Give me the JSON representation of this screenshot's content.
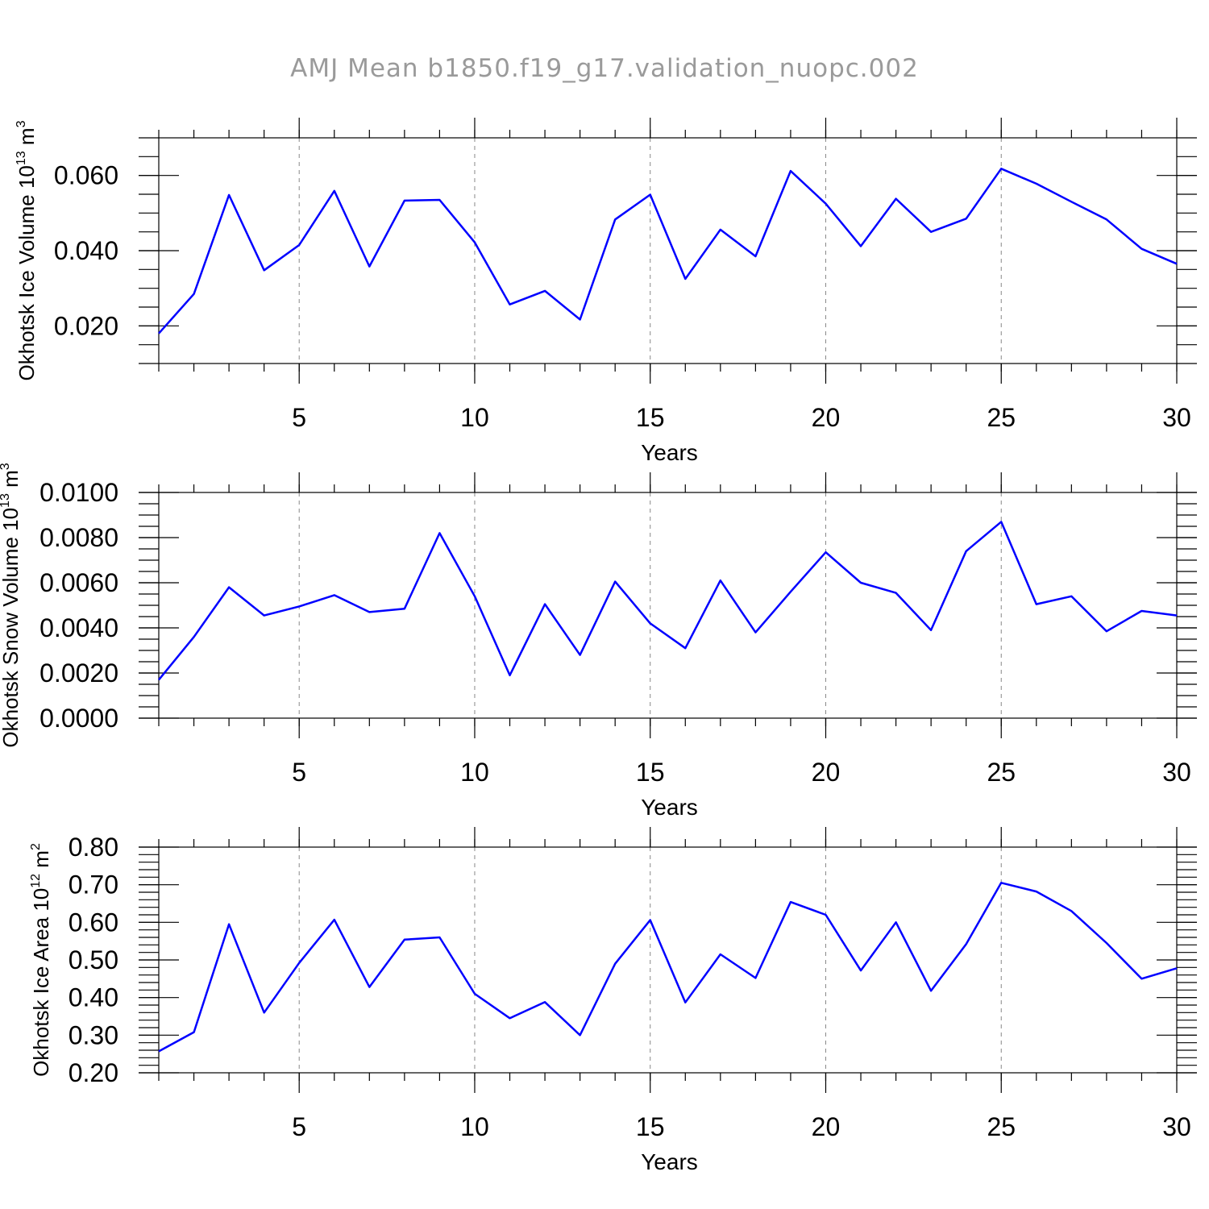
{
  "title": "AMJ Mean b1850.f19_g17.validation_nuopc.002",
  "line_color": "#0000ff",
  "chart_data": [
    {
      "type": "line",
      "xlabel": "Years",
      "ylabel": {
        "base": "Okhotsk Ice Volume 10",
        "exp": "13",
        "unit": " m",
        "unit_exp": "3"
      },
      "xlim": [
        1,
        30
      ],
      "ylim": [
        0.01,
        0.07
      ],
      "xticks": [
        5,
        10,
        15,
        20,
        25,
        30
      ],
      "xtick_labels": [
        "5",
        "10",
        "15",
        "20",
        "25",
        "30"
      ],
      "yticks": [
        0.02,
        0.04,
        0.06
      ],
      "ytick_labels": [
        "0.020",
        "0.040",
        "0.060"
      ],
      "y_minor_step": 0.005,
      "grid_x": [
        5,
        10,
        15,
        20,
        25
      ],
      "x": [
        1,
        2,
        3,
        4,
        5,
        6,
        7,
        8,
        9,
        10,
        11,
        12,
        13,
        14,
        15,
        16,
        17,
        18,
        19,
        20,
        21,
        22,
        23,
        24,
        25,
        26,
        27,
        28,
        29,
        30
      ],
      "series": [
        {
          "name": "Okhotsk Ice Volume",
          "values": [
            0.018,
            0.0285,
            0.0548,
            0.0348,
            0.0415,
            0.0559,
            0.0358,
            0.0533,
            0.0535,
            0.0422,
            0.0257,
            0.0293,
            0.0217,
            0.0483,
            0.0549,
            0.0325,
            0.0456,
            0.0385,
            0.0612,
            0.0525,
            0.0412,
            0.0538,
            0.045,
            0.0485,
            0.0618,
            0.0578,
            0.053,
            0.0483,
            0.0405,
            0.0365
          ]
        }
      ]
    },
    {
      "type": "line",
      "xlabel": "Years",
      "ylabel": {
        "base": "Okhotsk Snow Volume 10",
        "exp": "13",
        "unit": " m",
        "unit_exp": "3"
      },
      "xlim": [
        1,
        30
      ],
      "ylim": [
        0.0,
        0.01
      ],
      "xticks": [
        5,
        10,
        15,
        20,
        25,
        30
      ],
      "xtick_labels": [
        "5",
        "10",
        "15",
        "20",
        "25",
        "30"
      ],
      "yticks": [
        0.0,
        0.002,
        0.004,
        0.006,
        0.008,
        0.01
      ],
      "ytick_labels": [
        "0.0000",
        "0.0020",
        "0.0040",
        "0.0060",
        "0.0080",
        "0.0100"
      ],
      "y_minor_step": 0.0005,
      "grid_x": [
        5,
        10,
        15,
        20,
        25
      ],
      "x": [
        1,
        2,
        3,
        4,
        5,
        6,
        7,
        8,
        9,
        10,
        11,
        12,
        13,
        14,
        15,
        16,
        17,
        18,
        19,
        20,
        21,
        22,
        23,
        24,
        25,
        26,
        27,
        28,
        29,
        30
      ],
      "series": [
        {
          "name": "Okhotsk Snow Volume",
          "values": [
            0.0017,
            0.0036,
            0.0058,
            0.00455,
            0.00495,
            0.00545,
            0.0047,
            0.00485,
            0.0082,
            0.0054,
            0.0019,
            0.00505,
            0.0028,
            0.00605,
            0.0042,
            0.0031,
            0.0061,
            0.0038,
            0.0056,
            0.00735,
            0.006,
            0.00555,
            0.0039,
            0.0074,
            0.0087,
            0.00505,
            0.0054,
            0.00385,
            0.00475,
            0.00455
          ]
        }
      ]
    },
    {
      "type": "line",
      "xlabel": "Years",
      "ylabel": {
        "base": "Okhotsk Ice Area 10",
        "exp": "12",
        "unit": " m",
        "unit_exp": "2"
      },
      "xlim": [
        1,
        30
      ],
      "ylim": [
        0.2,
        0.8
      ],
      "xticks": [
        5,
        10,
        15,
        20,
        25,
        30
      ],
      "xtick_labels": [
        "5",
        "10",
        "15",
        "20",
        "25",
        "30"
      ],
      "yticks": [
        0.2,
        0.3,
        0.4,
        0.5,
        0.6,
        0.7,
        0.8
      ],
      "ytick_labels": [
        "0.20",
        "0.30",
        "0.40",
        "0.50",
        "0.60",
        "0.70",
        "0.80"
      ],
      "y_minor_step": 0.02,
      "grid_x": [
        5,
        10,
        15,
        20,
        25
      ],
      "x": [
        1,
        2,
        3,
        4,
        5,
        6,
        7,
        8,
        9,
        10,
        11,
        12,
        13,
        14,
        15,
        16,
        17,
        18,
        19,
        20,
        21,
        22,
        23,
        24,
        25,
        26,
        27,
        28,
        29,
        30
      ],
      "series": [
        {
          "name": "Okhotsk Ice Area",
          "values": [
            0.257,
            0.308,
            0.595,
            0.36,
            0.492,
            0.607,
            0.428,
            0.554,
            0.56,
            0.41,
            0.345,
            0.388,
            0.3,
            0.49,
            0.606,
            0.387,
            0.515,
            0.452,
            0.654,
            0.62,
            0.472,
            0.6,
            0.418,
            0.542,
            0.705,
            0.682,
            0.63,
            0.545,
            0.45,
            0.478
          ]
        }
      ]
    }
  ]
}
